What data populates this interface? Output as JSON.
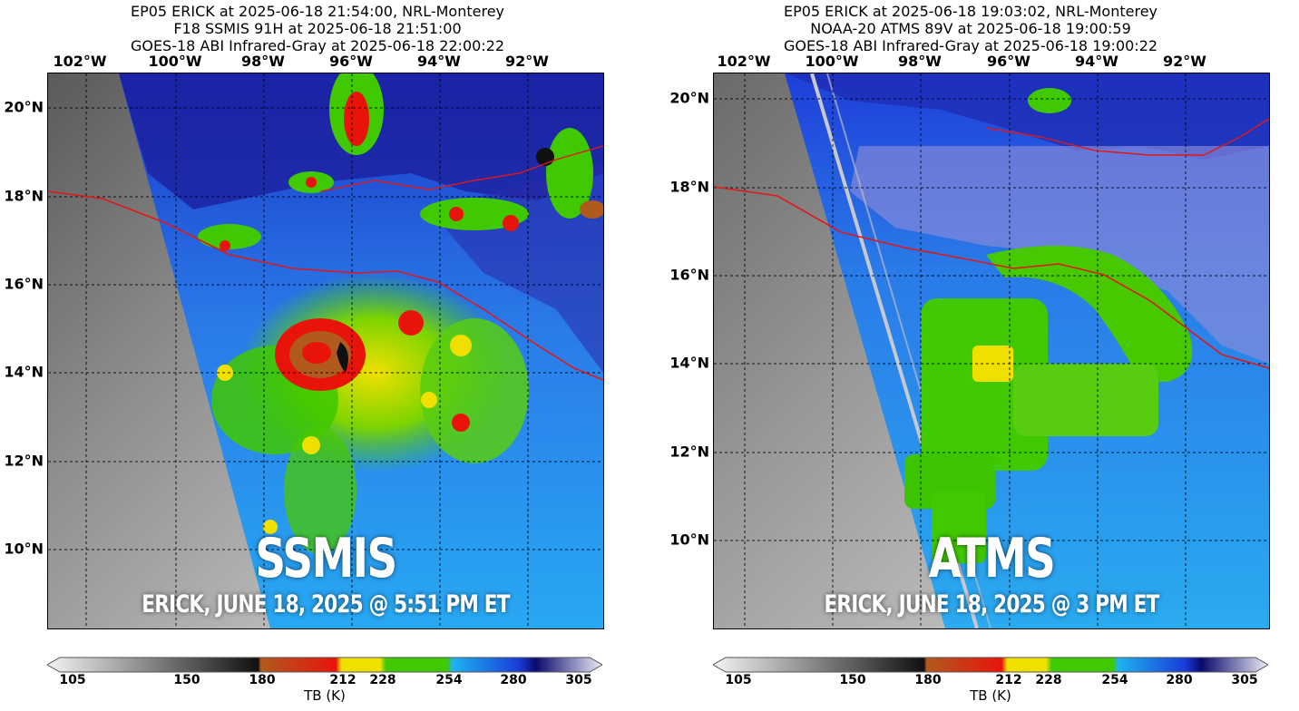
{
  "left_panel": {
    "title_lines": [
      "EP05 ERICK at 2025-06-18 21:54:00, NRL-Monterey",
      "F18 SSMIS 91H at 2025-06-18 21:51:00",
      "GOES-18 ABI Infrared-Gray at 2025-06-18 22:00:22"
    ],
    "lon_labels": [
      "102°W",
      "100°W",
      "98°W",
      "96°W",
      "94°W",
      "92°W"
    ],
    "lat_labels": [
      "20°N",
      "18°N",
      "16°N",
      "14°N",
      "12°N",
      "10°N"
    ],
    "overlay_title": "SSMIS",
    "overlay_subtitle": "ERICK, JUNE 18, 2025 @ 5:51 PM ET"
  },
  "right_panel": {
    "title_lines": [
      "EP05 ERICK at 2025-06-18 19:03:02, NRL-Monterey",
      "NOAA-20 ATMS 89V at 2025-06-18 19:00:59",
      "GOES-18 ABI Infrared-Gray at 2025-06-18 19:00:22"
    ],
    "lon_labels": [
      "102°W",
      "100°W",
      "98°W",
      "96°W",
      "94°W",
      "92°W"
    ],
    "lat_labels": [
      "20°N",
      "18°N",
      "16°N",
      "14°N",
      "12°N",
      "10°N"
    ],
    "overlay_title": "ATMS",
    "overlay_subtitle": "ERICK, JUNE 18, 2025 @ 3 PM ET"
  },
  "colorbar": {
    "ticks": [
      "105",
      "150",
      "180",
      "212",
      "228",
      "254",
      "280",
      "305"
    ],
    "label": "TB (K)",
    "colors": {
      "gray_light": "#f4f4f4",
      "gray_dark": "#101010",
      "brown": "#b05a1e",
      "red": "#e8140a",
      "yellow": "#f0e000",
      "green": "#40c800",
      "cyan": "#1eb4f0",
      "blue": "#1a3cd8",
      "navy": "#0a0a6e",
      "lavender": "#ecebf6"
    }
  }
}
